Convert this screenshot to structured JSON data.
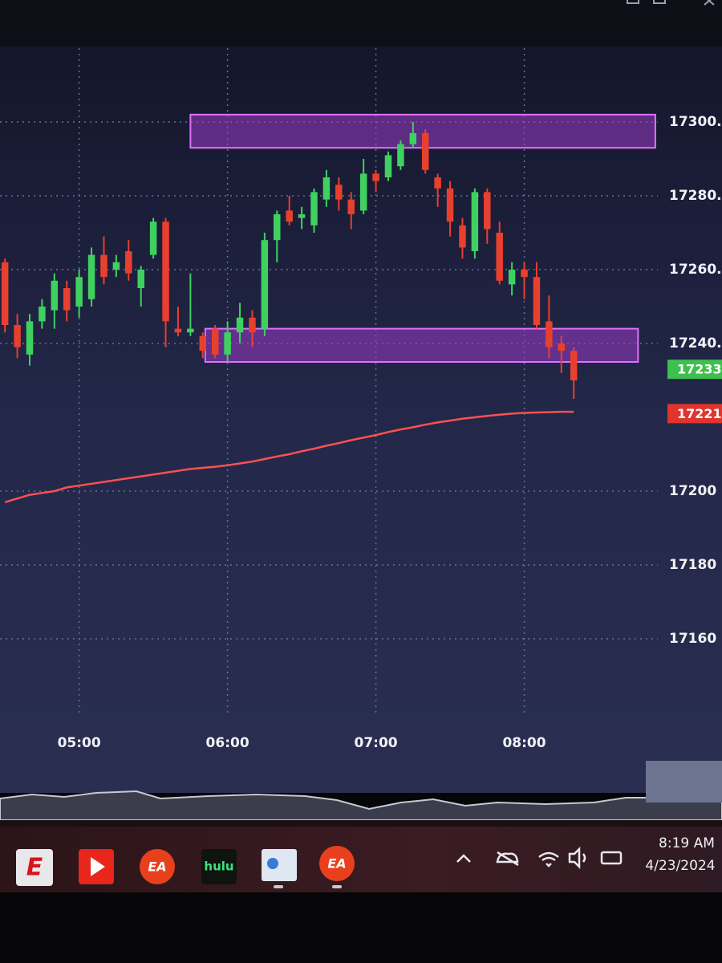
{
  "chart_data": {
    "type": "candlestick",
    "x": [
      270,
      275,
      280,
      285,
      290,
      295,
      300,
      305,
      310,
      315,
      320,
      325,
      330,
      335,
      340,
      345,
      350,
      355,
      360,
      365,
      370,
      375,
      380,
      385,
      390,
      395,
      400,
      405,
      410,
      415,
      420,
      425,
      430,
      435,
      440,
      445,
      450,
      455,
      460,
      465,
      470,
      475,
      480,
      485,
      490,
      495,
      500
    ],
    "open": [
      17262,
      17245,
      17237,
      17246,
      17249,
      17255,
      17250,
      17252,
      17264,
      17260,
      17265,
      17255,
      17264,
      17273,
      17244,
      17243,
      17242,
      17244,
      17237,
      17243,
      17247,
      17244,
      17268,
      17276,
      17274,
      17272,
      17279,
      17283,
      17279,
      17276,
      17286,
      17285,
      17288,
      17294,
      17297,
      17285,
      17282,
      17272,
      17265,
      17281,
      17270,
      17256,
      17260,
      17258,
      17246,
      17240,
      17238
    ],
    "high": [
      17263,
      17248,
      17248,
      17252,
      17259,
      17257,
      17260,
      17266,
      17269,
      17264,
      17268,
      17261,
      17274,
      17274,
      17250,
      17259,
      17243,
      17245,
      17246,
      17251,
      17249,
      17270,
      17276,
      17280,
      17277,
      17282,
      17287,
      17285,
      17281,
      17290,
      17287,
      17292,
      17295,
      17300,
      17298,
      17286,
      17284,
      17274,
      17282,
      17282,
      17273,
      17262,
      17262,
      17262,
      17253,
      17242,
      17239
    ],
    "low": [
      17243,
      17236,
      17234,
      17244,
      17244,
      17246,
      17247,
      17250,
      17256,
      17258,
      17257,
      17250,
      17263,
      17239,
      17242,
      17242,
      17236,
      17236,
      17235,
      17240,
      17239,
      17242,
      17262,
      17272,
      17271,
      17270,
      17277,
      17276,
      17271,
      17275,
      17281,
      17284,
      17287,
      17293,
      17286,
      17277,
      17269,
      17263,
      17263,
      17267,
      17256,
      17253,
      17252,
      17244,
      17236,
      17232,
      17225
    ],
    "close": [
      17245,
      17239,
      17246,
      17250,
      17257,
      17249,
      17258,
      17264,
      17258,
      17262,
      17259,
      17260,
      17273,
      17246,
      17243,
      17244,
      17238,
      17237,
      17243,
      17247,
      17243,
      17268,
      17275,
      17273,
      17275,
      17281,
      17285,
      17279,
      17275,
      17286,
      17284,
      17291,
      17294,
      17297,
      17287,
      17282,
      17273,
      17266,
      17281,
      17271,
      17257,
      17260,
      17258,
      17245,
      17239,
      17238,
      17230
    ],
    "xlim": [
      268,
      534
    ],
    "xticks": [
      {
        "value": 300,
        "label": "05:00"
      },
      {
        "value": 360,
        "label": "06:00"
      },
      {
        "value": 420,
        "label": "07:00"
      },
      {
        "value": 480,
        "label": "08:00"
      }
    ],
    "ylim": [
      17140,
      17320
    ],
    "yticks": [
      {
        "value": 17300,
        "label": "17300.0"
      },
      {
        "value": 17280,
        "label": "17280.0"
      },
      {
        "value": 17260,
        "label": "17260.0"
      },
      {
        "value": 17240,
        "label": "17240.0"
      },
      17200,
      17180,
      17160
    ],
    "grid": true,
    "up_color": "#3fd160",
    "down_color": "#e8402f",
    "moving_average": {
      "color": "#ff5050",
      "values": [
        17197,
        17198,
        17199,
        17199.5,
        17200,
        17201,
        17201.5,
        17202,
        17202.5,
        17203,
        17203.5,
        17204,
        17204.5,
        17205,
        17205.5,
        17206,
        17206.3,
        17206.6,
        17207,
        17207.5,
        17208,
        17208.7,
        17209.4,
        17210,
        17210.8,
        17211.5,
        17212.3,
        17213,
        17213.8,
        17214.5,
        17215.2,
        17216,
        17216.7,
        17217.3,
        17218,
        17218.6,
        17219.1,
        17219.6,
        17220,
        17220.4,
        17220.7,
        17221,
        17221.2,
        17221.3,
        17221.4,
        17221.5,
        17221.5
      ]
    },
    "zone_color": "#9a3cc8",
    "zones": [
      {
        "x": [
          345,
          533
        ],
        "y": [
          17293,
          17302
        ]
      },
      {
        "x": [
          351,
          526
        ],
        "y": [
          17235,
          17244
        ]
      }
    ],
    "price_tags": [
      {
        "value": 17233,
        "label": "17233.",
        "color": "#3fbf4f"
      },
      {
        "value": 17221,
        "label": "17221",
        "color": "#e0342c"
      }
    ]
  },
  "taskbar": {
    "apps": [
      "E",
      "EA",
      "hulu",
      "EA"
    ],
    "time": "8:19 AM",
    "date": "4/23/2024"
  }
}
